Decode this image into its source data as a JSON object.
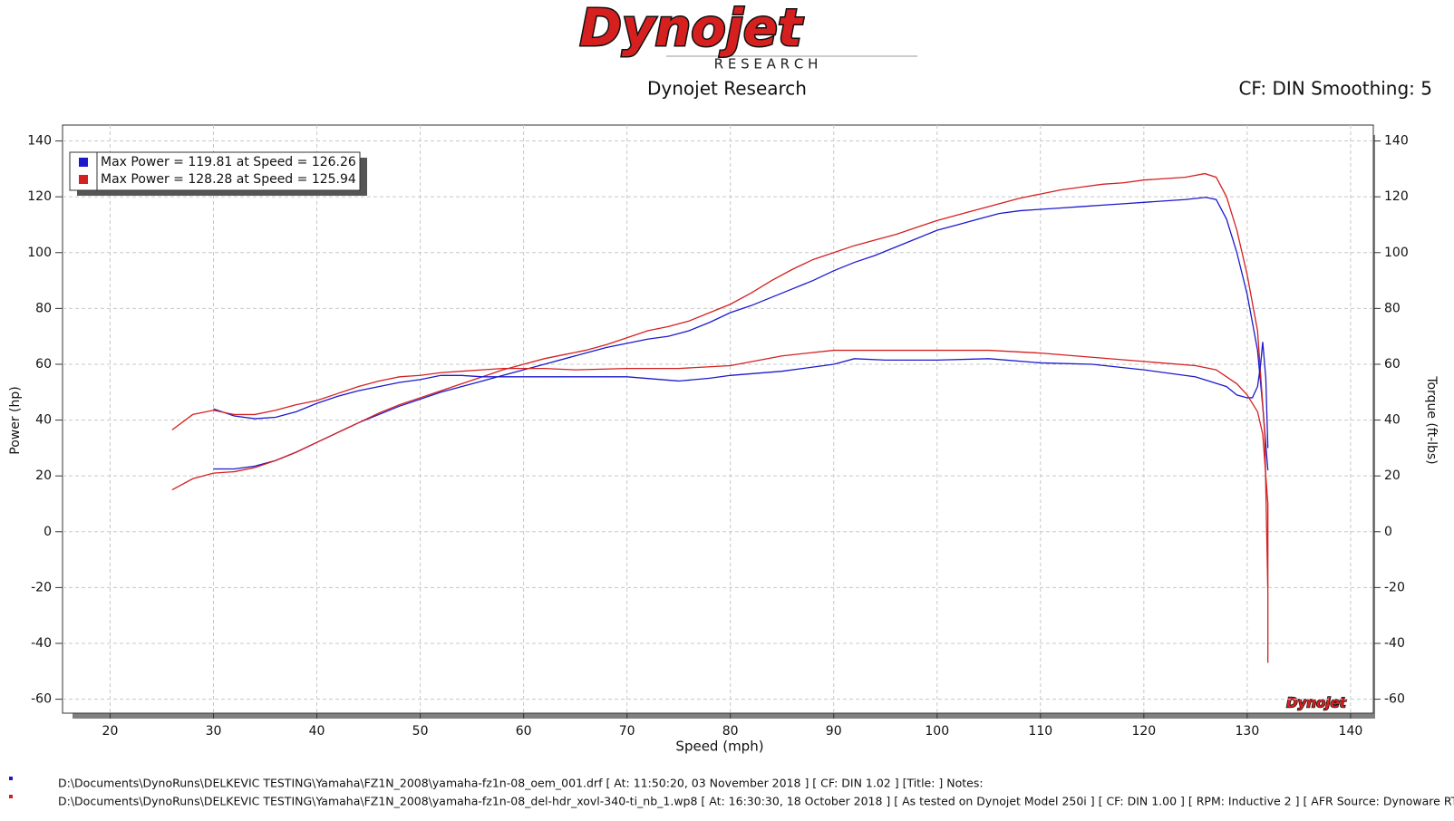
{
  "logo": {
    "name": "Dynojet",
    "subtitle": "R E S E A R C H"
  },
  "chart_data": {
    "type": "line",
    "title": "Dynojet Research",
    "subtitle": "CF: DIN Smoothing: 5",
    "x_label": "Speed (mph)",
    "y_label": "Power (hp)",
    "y2_label": "Torque (ft-lbs)",
    "watermark": "Dynojet",
    "xlim": [
      15.4,
      142.2
    ],
    "ylim": [
      -65,
      145.7
    ],
    "y2lim": [
      -65,
      145.7
    ],
    "xticks": [
      20,
      30,
      40,
      50,
      60,
      70,
      80,
      90,
      100,
      110,
      120,
      130,
      140
    ],
    "yticks": [
      -60,
      -40,
      -20,
      0,
      20,
      40,
      60,
      80,
      100,
      120,
      140
    ],
    "y2ticks": [
      -60,
      -40,
      -20,
      0,
      20,
      40,
      60,
      80,
      100,
      120,
      140
    ],
    "grid": true,
    "legend": "upper left",
    "series": [
      {
        "name": "Max Power = 119.81 at Speed = 126.26",
        "color": "#1a1acc",
        "x": [
          30,
          32,
          34,
          36,
          38,
          40,
          42,
          44,
          46,
          48,
          50,
          52,
          54,
          56,
          58,
          60,
          62,
          64,
          66,
          68,
          70,
          72,
          74,
          76,
          78,
          80,
          82,
          84,
          86,
          88,
          90,
          92,
          94,
          96,
          98,
          100,
          102,
          104,
          106,
          108,
          110,
          112,
          114,
          116,
          118,
          120,
          122,
          124,
          126,
          127,
          128,
          129,
          130,
          131,
          131.5,
          132
        ],
        "values": [
          22.5,
          22.5,
          23.5,
          25.5,
          28.5,
          32,
          35.5,
          39,
          42,
          45,
          47.5,
          50,
          52,
          54,
          56,
          58,
          60,
          62,
          64,
          66,
          67.5,
          69,
          70,
          72,
          75,
          78.5,
          81,
          84,
          87,
          90,
          93.5,
          96.5,
          99,
          102,
          105,
          108,
          110,
          112,
          114,
          115,
          115.5,
          116,
          116.5,
          117,
          117.5,
          118,
          118.5,
          119,
          119.8,
          119,
          112,
          100,
          85,
          65,
          45,
          22
        ]
      },
      {
        "name": "Max Power = 128.28 at Speed = 125.94",
        "color": "#d42020",
        "x": [
          26,
          28,
          30,
          32,
          34,
          36,
          38,
          40,
          42,
          44,
          46,
          48,
          50,
          52,
          54,
          56,
          58,
          60,
          62,
          64,
          66,
          68,
          70,
          72,
          74,
          76,
          78,
          80,
          82,
          84,
          86,
          88,
          90,
          92,
          94,
          96,
          98,
          100,
          102,
          104,
          106,
          108,
          110,
          112,
          114,
          116,
          118,
          120,
          122,
          124,
          125.9,
          127,
          128,
          129,
          130,
          131,
          131.7,
          132,
          132
        ],
        "values": [
          15,
          19,
          21,
          21.5,
          23,
          25.5,
          28.5,
          32,
          35.5,
          39,
          42.5,
          45.5,
          48,
          50.5,
          53,
          55.5,
          58,
          60,
          62,
          63.5,
          65,
          67,
          69.5,
          72,
          73.5,
          75.5,
          78.5,
          81.5,
          85.5,
          90,
          94,
          97.5,
          100,
          102.5,
          104.5,
          106.5,
          109,
          111.5,
          113.5,
          115.5,
          117.5,
          119.5,
          121,
          122.5,
          123.5,
          124.5,
          125,
          126,
          126.5,
          127,
          128.3,
          127,
          120,
          108,
          92,
          72,
          35,
          -22,
          -47
        ]
      },
      {
        "color": "#1a1acc",
        "axis": "y2",
        "x": [
          30,
          32,
          34,
          36,
          38,
          40,
          42,
          44,
          46,
          48,
          50,
          52,
          54,
          56,
          58,
          60,
          65,
          70,
          75,
          78,
          80,
          85,
          90,
          92,
          95,
          100,
          105,
          110,
          115,
          120,
          125,
          128,
          129,
          130,
          130.5,
          131,
          131.3,
          131.5,
          131.8,
          132
        ],
        "values": [
          44,
          41.5,
          40.5,
          41,
          43,
          46,
          48.5,
          50.5,
          52,
          53.5,
          54.5,
          56,
          56,
          55.5,
          55.5,
          55.5,
          55.5,
          55.5,
          54,
          55,
          56,
          57.5,
          60,
          62,
          61.5,
          61.5,
          62,
          60.5,
          60,
          58,
          55.5,
          52,
          49,
          48,
          48,
          52,
          60,
          68,
          55,
          30
        ]
      },
      {
        "color": "#d42020",
        "axis": "y2",
        "x": [
          26,
          28,
          30,
          32,
          34,
          36,
          38,
          40,
          42,
          44,
          46,
          48,
          50,
          52,
          54,
          56,
          58,
          60,
          62,
          65,
          70,
          75,
          80,
          85,
          90,
          95,
          100,
          105,
          110,
          115,
          120,
          125,
          127,
          129,
          130,
          131,
          131.5,
          132,
          132
        ],
        "values": [
          36.5,
          42,
          43.5,
          42,
          42,
          43.5,
          45.5,
          47,
          49.5,
          52,
          54,
          55.5,
          56,
          57,
          57.5,
          58,
          58.5,
          58.5,
          58.5,
          58,
          58.5,
          58.5,
          59.5,
          63,
          65,
          65,
          65,
          65,
          64,
          62.5,
          61,
          59.5,
          58,
          53,
          49,
          43,
          35,
          10,
          -20
        ]
      }
    ],
    "footer": [
      "D:\\Documents\\DynoRuns\\DELKEVIC TESTING\\Yamaha\\FZ1N_2008\\yamaha-fz1n-08_oem_001.drf [ At: 11:50:20, 03 November 2018 ] [ CF: DIN 1.02 ] [Title: ]  Notes:",
      "D:\\Documents\\DynoRuns\\DELKEVIC TESTING\\Yamaha\\FZ1N_2008\\yamaha-fz1n-08_del-hdr_xovl-340-ti_nb_1.wp8 [ At: 16:30:30, 18 October 2018 ] [ As tested on Dynojet Model 250i ] [ CF: DIN 1.00 ] [ RPM: Inductive 2 ] [ AFR Source: Dynoware RT WB ]"
    ]
  }
}
